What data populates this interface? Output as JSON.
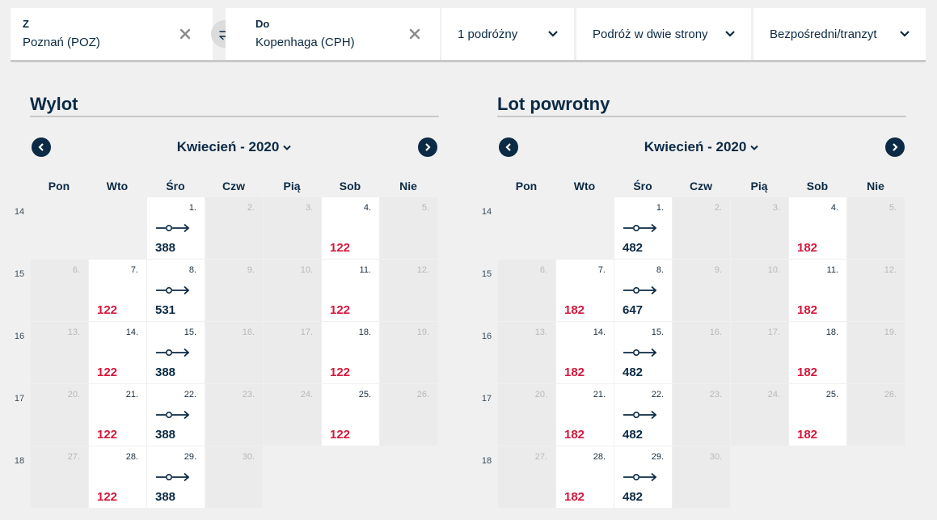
{
  "search": {
    "from": {
      "label": "Z",
      "value": "Poznań (POZ)"
    },
    "to": {
      "label": "Do",
      "value": "Kopenhaga (CPH)"
    },
    "travelers": "1 podróżny",
    "trip_type": "Podróż w dwie strony",
    "route_type": "Bezpośredni/tranzyt"
  },
  "colors": {
    "navy": "#0b2a45",
    "price_red": "#d6173b"
  },
  "weekdays": [
    "Pon",
    "Wto",
    "Śro",
    "Czw",
    "Pią",
    "Sob",
    "Nie"
  ],
  "week_numbers": [
    "14",
    "15",
    "16",
    "17",
    "18"
  ],
  "calendars": [
    {
      "title": "Wylot",
      "month": "Kwiecień - 2020",
      "weeks": [
        [
          null,
          null,
          {
            "d": "1.",
            "p": "388",
            "direct": true
          },
          {
            "d": "2."
          },
          {
            "d": "3."
          },
          {
            "d": "4.",
            "p": "122",
            "red": true
          },
          {
            "d": "5."
          }
        ],
        [
          {
            "d": "6."
          },
          {
            "d": "7.",
            "p": "122",
            "red": true
          },
          {
            "d": "8.",
            "p": "531",
            "direct": true
          },
          {
            "d": "9."
          },
          {
            "d": "10."
          },
          {
            "d": "11.",
            "p": "122",
            "red": true
          },
          {
            "d": "12."
          }
        ],
        [
          {
            "d": "13."
          },
          {
            "d": "14.",
            "p": "122",
            "red": true
          },
          {
            "d": "15.",
            "p": "388",
            "direct": true
          },
          {
            "d": "16."
          },
          {
            "d": "17."
          },
          {
            "d": "18.",
            "p": "122",
            "red": true
          },
          {
            "d": "19."
          }
        ],
        [
          {
            "d": "20."
          },
          {
            "d": "21.",
            "p": "122",
            "red": true
          },
          {
            "d": "22.",
            "p": "388",
            "direct": true
          },
          {
            "d": "23."
          },
          {
            "d": "24."
          },
          {
            "d": "25.",
            "p": "122",
            "red": true
          },
          {
            "d": "26."
          }
        ],
        [
          {
            "d": "27."
          },
          {
            "d": "28.",
            "p": "122",
            "red": true
          },
          {
            "d": "29.",
            "p": "388",
            "direct": true
          },
          {
            "d": "30."
          },
          null,
          null,
          null
        ]
      ]
    },
    {
      "title": "Lot powrotny",
      "month": "Kwiecień - 2020",
      "weeks": [
        [
          null,
          null,
          {
            "d": "1.",
            "p": "482",
            "direct": true
          },
          {
            "d": "2."
          },
          {
            "d": "3."
          },
          {
            "d": "4.",
            "p": "182",
            "red": true
          },
          {
            "d": "5."
          }
        ],
        [
          {
            "d": "6."
          },
          {
            "d": "7.",
            "p": "182",
            "red": true
          },
          {
            "d": "8.",
            "p": "647",
            "direct": true
          },
          {
            "d": "9."
          },
          {
            "d": "10."
          },
          {
            "d": "11.",
            "p": "182",
            "red": true
          },
          {
            "d": "12."
          }
        ],
        [
          {
            "d": "13."
          },
          {
            "d": "14.",
            "p": "182",
            "red": true
          },
          {
            "d": "15.",
            "p": "482",
            "direct": true
          },
          {
            "d": "16."
          },
          {
            "d": "17."
          },
          {
            "d": "18.",
            "p": "182",
            "red": true
          },
          {
            "d": "19."
          }
        ],
        [
          {
            "d": "20."
          },
          {
            "d": "21.",
            "p": "182",
            "red": true
          },
          {
            "d": "22.",
            "p": "482",
            "direct": true
          },
          {
            "d": "23."
          },
          {
            "d": "24."
          },
          {
            "d": "25.",
            "p": "182",
            "red": true
          },
          {
            "d": "26."
          }
        ],
        [
          {
            "d": "27."
          },
          {
            "d": "28.",
            "p": "182",
            "red": true
          },
          {
            "d": "29.",
            "p": "482",
            "direct": true
          },
          {
            "d": "30."
          },
          null,
          null,
          null
        ]
      ]
    }
  ]
}
